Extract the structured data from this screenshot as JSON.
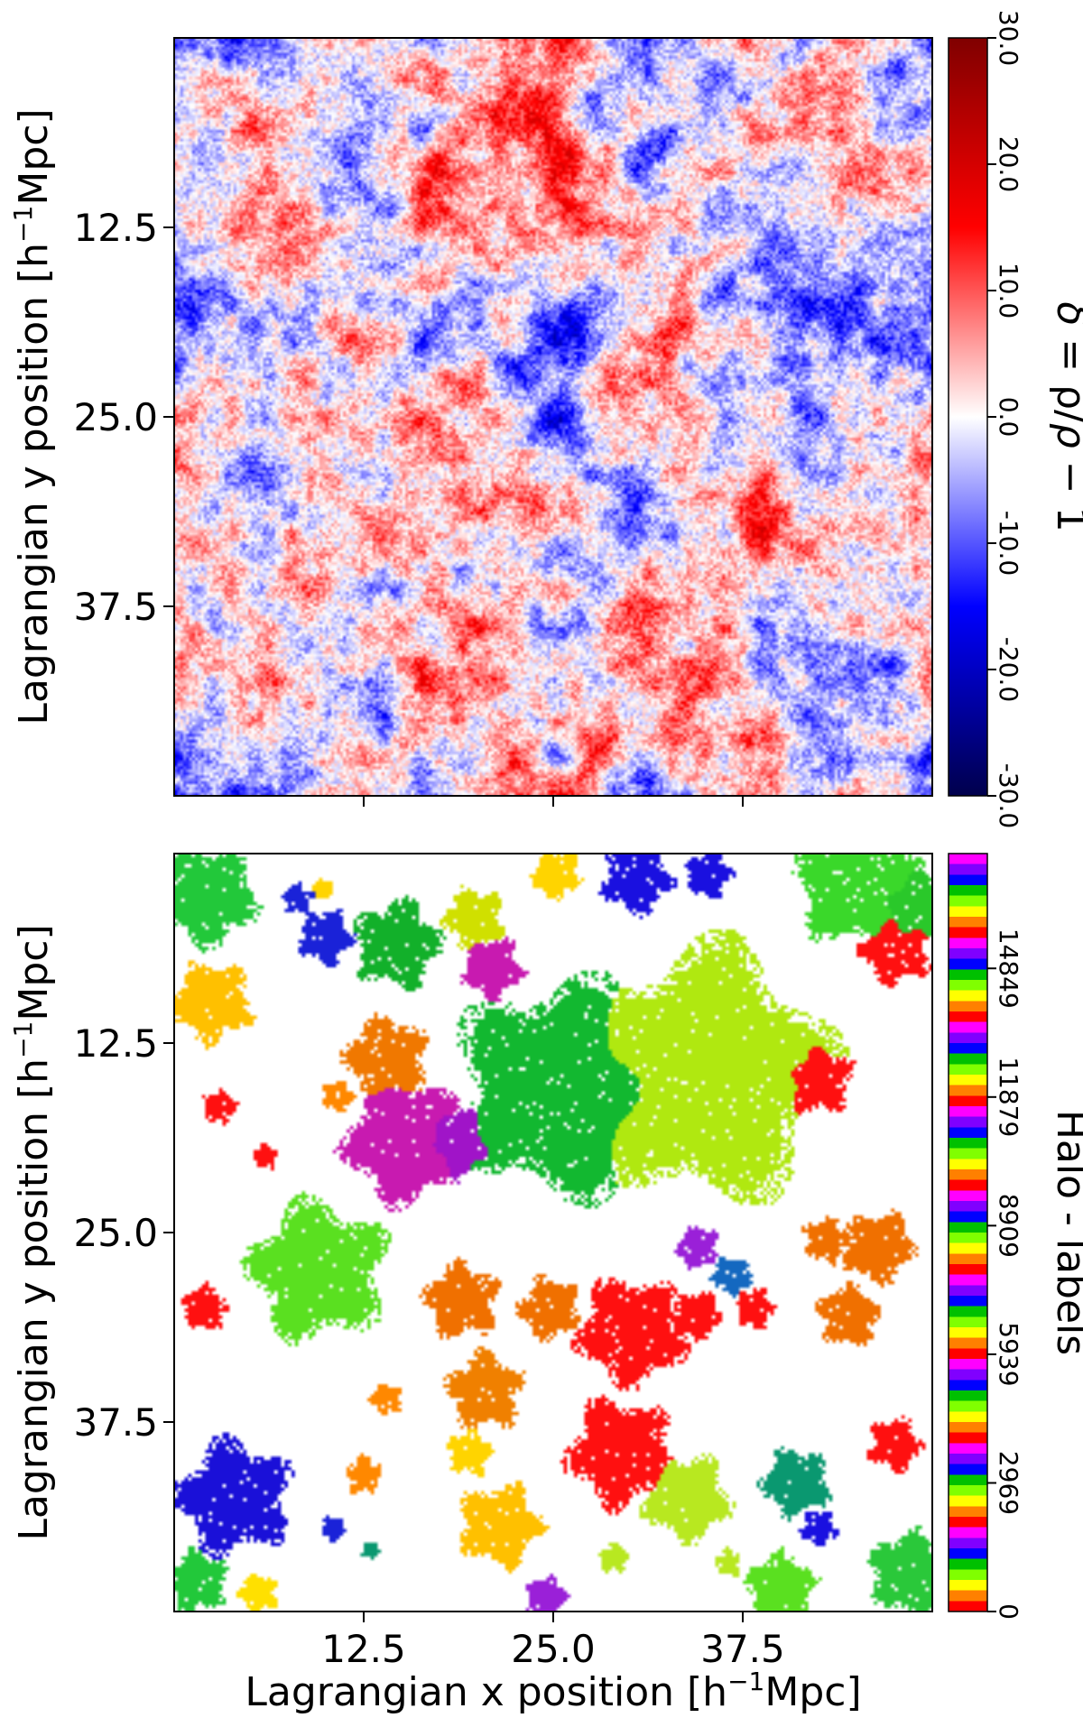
{
  "chart_data": [
    {
      "type": "heatmap",
      "panel": "top",
      "description_values": "initial Lagrangian density field",
      "xlabel": "",
      "ylabel": "Lagrangian y position [h$^{-1}$Mpc]",
      "ylabel_main": "Lagrangian y position ",
      "ylabel_unit_pre": "[h",
      "ylabel_unit_sup": "−1",
      "ylabel_unit_post": "Mpc]",
      "xlim": [
        0,
        50
      ],
      "ylim": [
        50,
        0
      ],
      "y_ticks": [
        12.5,
        25.0,
        37.5
      ],
      "y_tick_labels": [
        "12.5",
        "25.0",
        "37.5"
      ],
      "x_ticks": [
        12.5,
        25.0,
        37.5
      ],
      "x_tick_labels": [],
      "colormap": "seismic",
      "colormap_stops": [
        "#00004c",
        "#0000ff",
        "#ffffff",
        "#ff0000",
        "#800000"
      ],
      "colorbar": {
        "label": "δ = ρ/ρ̄ − 1",
        "label_delta": "δ",
        "label_eq": " = ρ/",
        "label_rhobar": "ρ̄",
        "label_tail": " − 1",
        "range": [
          -30,
          30
        ],
        "ticks": [
          30.0,
          20.0,
          10.0,
          0.0,
          -10.0,
          -20.0,
          -30.0
        ],
        "tick_labels": [
          "30.0",
          "20.0",
          "10.0",
          "0.0",
          "-10.0",
          "-20.0",
          "-30.0"
        ]
      }
    },
    {
      "type": "heatmap",
      "panel": "bottom",
      "xlabel": "Lagrangian x position [h$^{-1}$Mpc]",
      "xlabel_main": "Lagrangian x position ",
      "xlabel_unit_pre": "[h",
      "xlabel_unit_sup": "−1",
      "xlabel_unit_post": "Mpc]",
      "ylabel": "Lagrangian y position [h$^{-1}$Mpc]",
      "ylabel_main": "Lagrangian y position ",
      "ylabel_unit_pre": "[h",
      "ylabel_unit_sup": "−1",
      "ylabel_unit_post": "Mpc]",
      "xlim": [
        0,
        50
      ],
      "ylim": [
        50,
        0
      ],
      "x_ticks": [
        12.5,
        25.0,
        37.5
      ],
      "x_tick_labels": [
        "12.5",
        "25.0",
        "37.5"
      ],
      "y_ticks": [
        12.5,
        25.0,
        37.5
      ],
      "y_tick_labels": [
        "12.5",
        "25.0",
        "37.5"
      ],
      "colormap": "prism",
      "colorbar": {
        "label": "Halo - labels",
        "range": [
          0,
          17500
        ],
        "ticks": [
          0,
          2969,
          5939,
          8909,
          11879,
          14849
        ],
        "tick_labels": [
          "0",
          "2969",
          "5939",
          "8909",
          "11879",
          "14849"
        ]
      },
      "halos": [
        {
          "x": 2.2,
          "y": 2.8,
          "r": 3.2,
          "color": "#22c83a"
        },
        {
          "x": 10.0,
          "y": 5.5,
          "r": 1.8,
          "color": "#1a22d8"
        },
        {
          "x": 14.7,
          "y": 6.0,
          "r": 2.8,
          "color": "#12b02a"
        },
        {
          "x": 8.1,
          "y": 3.0,
          "r": 1.0,
          "color": "#1a22d8"
        },
        {
          "x": 9.8,
          "y": 2.3,
          "r": 0.7,
          "color": "#ffd400"
        },
        {
          "x": 19.8,
          "y": 4.3,
          "r": 2.0,
          "color": "#d0e000"
        },
        {
          "x": 25.2,
          "y": 1.4,
          "r": 1.6,
          "color": "#ffd400"
        },
        {
          "x": 30.5,
          "y": 1.6,
          "r": 2.3,
          "color": "#1a10e0"
        },
        {
          "x": 35.2,
          "y": 1.4,
          "r": 1.5,
          "color": "#1a10e0"
        },
        {
          "x": 45.0,
          "y": 2.0,
          "r": 4.0,
          "color": "#3ad82a"
        },
        {
          "x": 49.0,
          "y": 3.5,
          "r": 2.5,
          "color": "#2ac82a"
        },
        {
          "x": 47.6,
          "y": 6.3,
          "r": 2.3,
          "color": "#ff1010"
        },
        {
          "x": 2.5,
          "y": 9.8,
          "r": 2.6,
          "color": "#ffc000"
        },
        {
          "x": 21.0,
          "y": 7.5,
          "r": 2.0,
          "color": "#c81ab0"
        },
        {
          "x": 25.5,
          "y": 15.5,
          "r": 7.0,
          "color": "#12b830"
        },
        {
          "x": 35.0,
          "y": 14.5,
          "r": 8.2,
          "color": "#b0e810"
        },
        {
          "x": 42.4,
          "y": 14.8,
          "r": 2.3,
          "color": "#ff1010"
        },
        {
          "x": 14.0,
          "y": 13.5,
          "r": 2.7,
          "color": "#f07800"
        },
        {
          "x": 15.2,
          "y": 19.0,
          "r": 4.0,
          "color": "#c81ab0"
        },
        {
          "x": 18.5,
          "y": 19.0,
          "r": 2.4,
          "color": "#a014c8"
        },
        {
          "x": 10.8,
          "y": 16.0,
          "r": 1.0,
          "color": "#ff8800"
        },
        {
          "x": 3.0,
          "y": 16.7,
          "r": 1.1,
          "color": "#ff1010"
        },
        {
          "x": 6.0,
          "y": 20.0,
          "r": 0.8,
          "color": "#ff1010"
        },
        {
          "x": 9.5,
          "y": 27.5,
          "r": 4.5,
          "color": "#5ae020"
        },
        {
          "x": 34.5,
          "y": 26.0,
          "r": 1.4,
          "color": "#9a20d8"
        },
        {
          "x": 36.8,
          "y": 27.8,
          "r": 1.3,
          "color": "#1468c0"
        },
        {
          "x": 46.5,
          "y": 26.0,
          "r": 2.3,
          "color": "#f07000"
        },
        {
          "x": 43.0,
          "y": 25.5,
          "r": 1.5,
          "color": "#f07000"
        },
        {
          "x": 44.5,
          "y": 30.5,
          "r": 2.0,
          "color": "#f07000"
        },
        {
          "x": 19.0,
          "y": 29.5,
          "r": 2.4,
          "color": "#f07000"
        },
        {
          "x": 24.8,
          "y": 30.0,
          "r": 2.0,
          "color": "#f07000"
        },
        {
          "x": 30.2,
          "y": 31.5,
          "r": 3.5,
          "color": "#ff1010"
        },
        {
          "x": 34.5,
          "y": 30.5,
          "r": 1.6,
          "color": "#ff1010"
        },
        {
          "x": 38.3,
          "y": 30.0,
          "r": 1.3,
          "color": "#ff1010"
        },
        {
          "x": 2.0,
          "y": 30.0,
          "r": 1.5,
          "color": "#ff1010"
        },
        {
          "x": 20.5,
          "y": 35.5,
          "r": 2.5,
          "color": "#f08000"
        },
        {
          "x": 14.0,
          "y": 36.0,
          "r": 1.0,
          "color": "#ff8800"
        },
        {
          "x": 29.5,
          "y": 39.5,
          "r": 3.5,
          "color": "#ff1010"
        },
        {
          "x": 33.8,
          "y": 42.5,
          "r": 2.8,
          "color": "#b8e820"
        },
        {
          "x": 21.5,
          "y": 44.3,
          "r": 2.7,
          "color": "#ffc000"
        },
        {
          "x": 19.5,
          "y": 39.5,
          "r": 1.5,
          "color": "#ffd400"
        },
        {
          "x": 12.5,
          "y": 41.0,
          "r": 1.2,
          "color": "#ff8800"
        },
        {
          "x": 4.0,
          "y": 42.5,
          "r": 3.7,
          "color": "#1a10d8"
        },
        {
          "x": 41.0,
          "y": 41.5,
          "r": 2.2,
          "color": "#0a9870"
        },
        {
          "x": 42.5,
          "y": 44.5,
          "r": 1.2,
          "color": "#1a10e0"
        },
        {
          "x": 47.5,
          "y": 39.0,
          "r": 1.7,
          "color": "#ff1010"
        },
        {
          "x": 48.5,
          "y": 47.5,
          "r": 2.7,
          "color": "#2ac83a"
        },
        {
          "x": 40.0,
          "y": 48.5,
          "r": 2.3,
          "color": "#5ae020"
        },
        {
          "x": 1.5,
          "y": 48.0,
          "r": 2.0,
          "color": "#22c83a"
        },
        {
          "x": 5.5,
          "y": 48.8,
          "r": 1.3,
          "color": "#ffe000"
        },
        {
          "x": 10.5,
          "y": 44.5,
          "r": 0.8,
          "color": "#1a22d8"
        },
        {
          "x": 13.0,
          "y": 46.0,
          "r": 0.6,
          "color": "#0a9870"
        },
        {
          "x": 24.5,
          "y": 49.0,
          "r": 1.3,
          "color": "#9a20d8"
        },
        {
          "x": 29.0,
          "y": 46.5,
          "r": 1.0,
          "color": "#b8e820"
        },
        {
          "x": 36.5,
          "y": 46.8,
          "r": 0.9,
          "color": "#b8e820"
        }
      ]
    }
  ]
}
